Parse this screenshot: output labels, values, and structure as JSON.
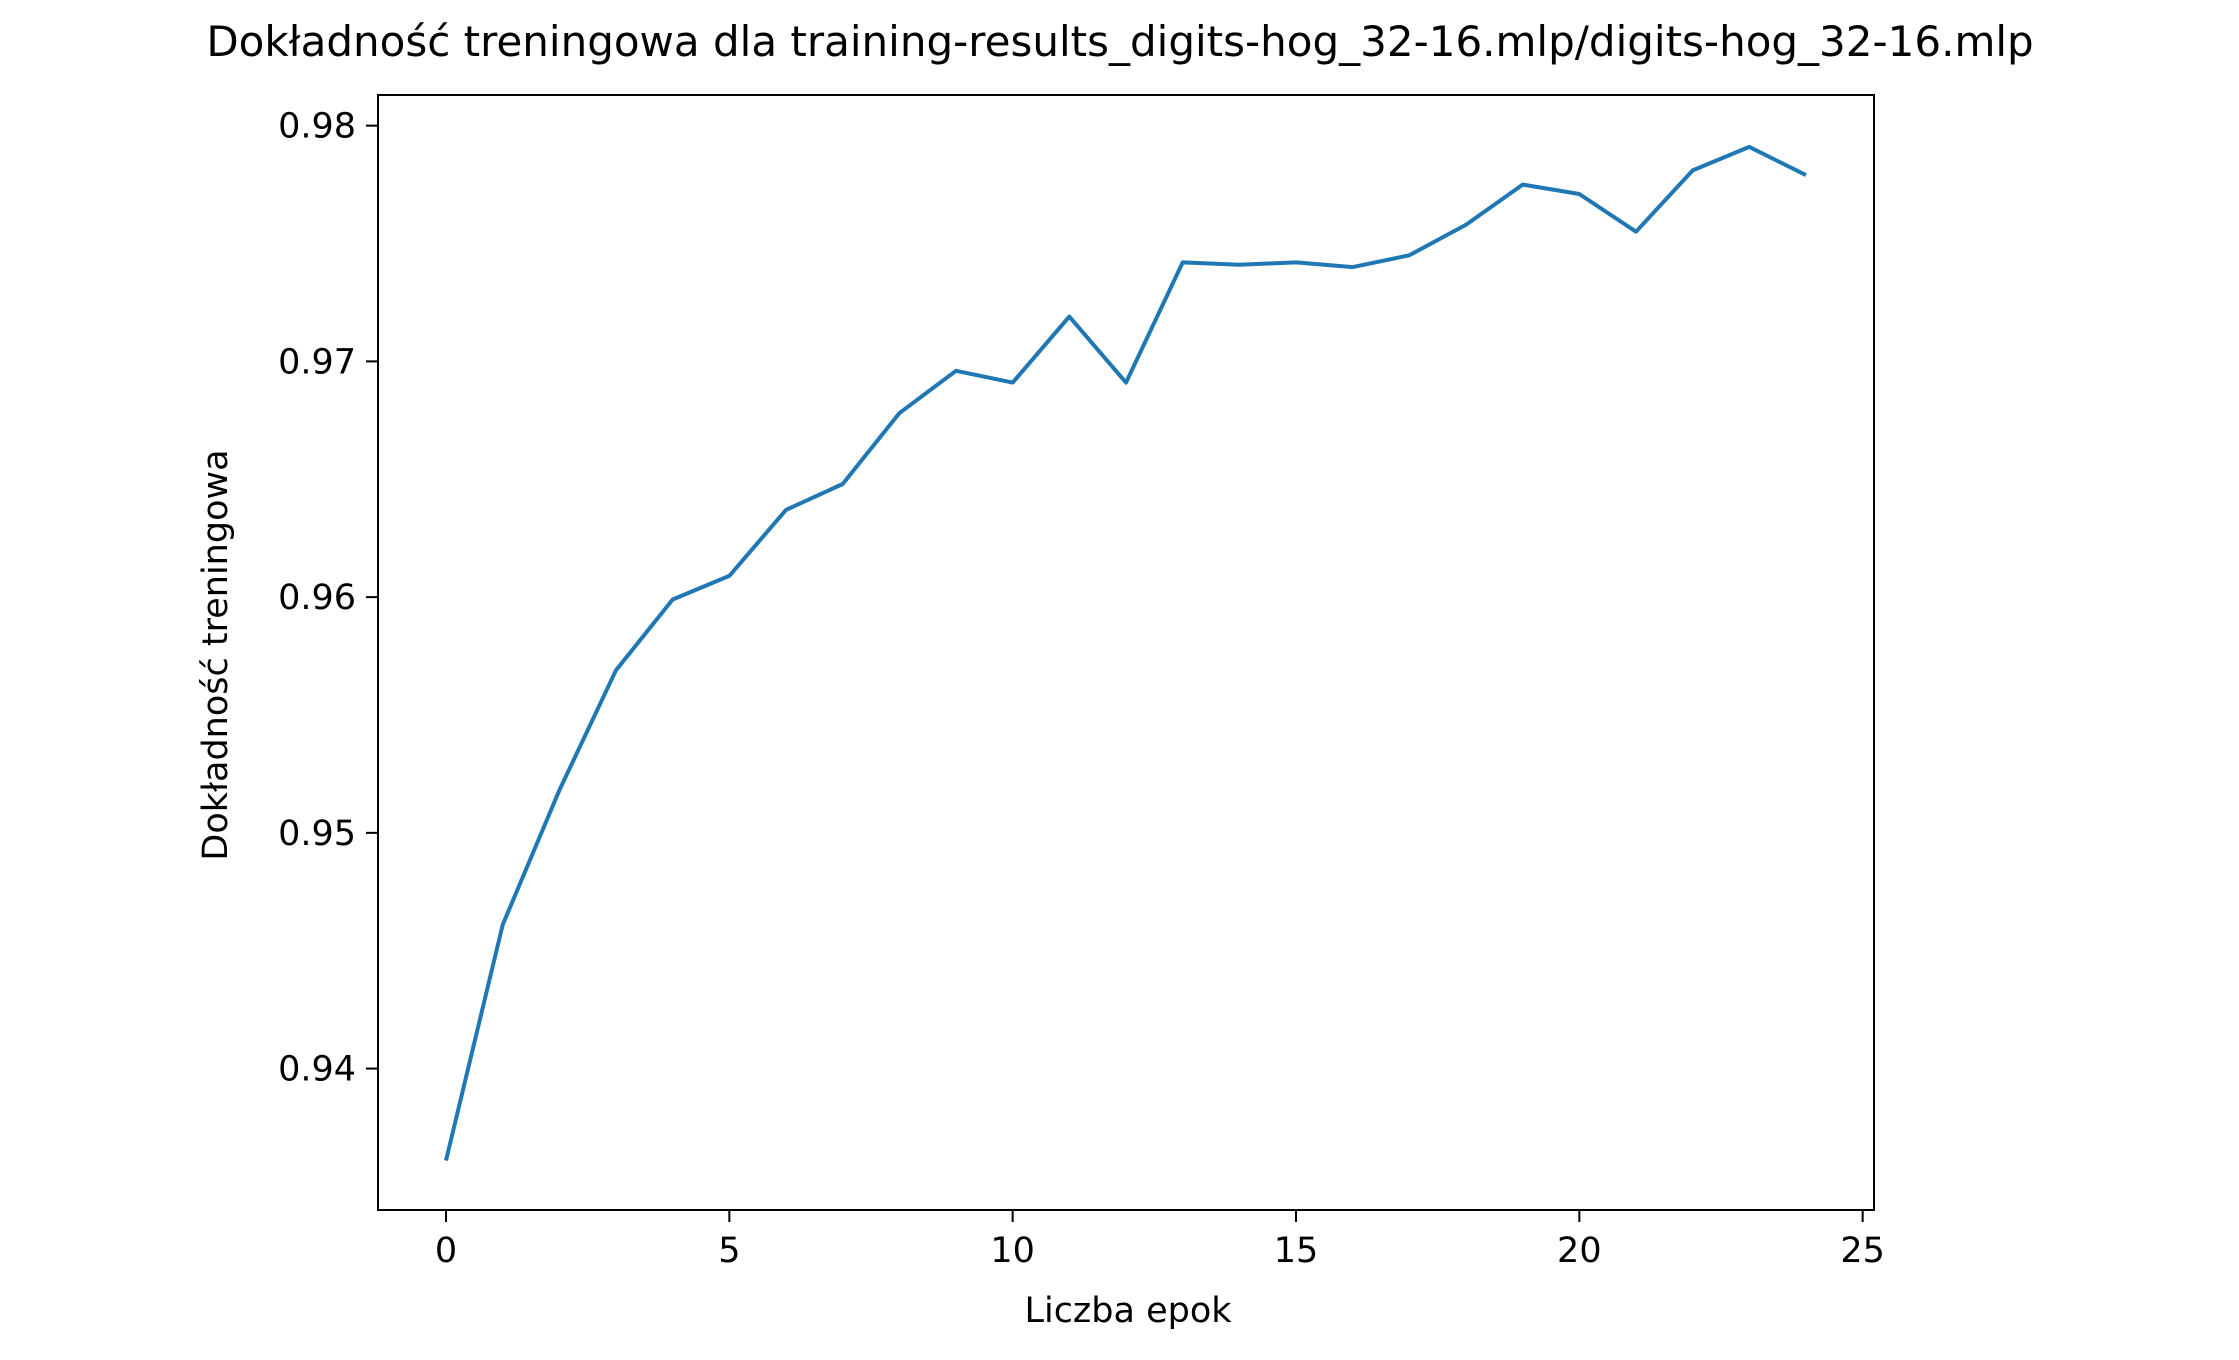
{
  "chart_data": {
    "type": "line",
    "title": "Dokładność treningowa dla training-results_digits-hog_32-16.mlp/digits-hog_32-16.mlp",
    "xlabel": "Liczba epok",
    "ylabel": "Dokładność treningowa",
    "xlim": [
      -1.2,
      25.2
    ],
    "ylim": [
      0.934,
      0.9813
    ],
    "xticks": [
      0,
      5,
      10,
      15,
      20,
      25
    ],
    "xtick_labels": [
      "0",
      "5",
      "10",
      "15",
      "20",
      "25"
    ],
    "yticks": [
      0.94,
      0.95,
      0.96,
      0.97,
      0.98
    ],
    "ytick_labels": [
      "0.94",
      "0.95",
      "0.96",
      "0.97",
      "0.98"
    ],
    "grid": false,
    "series": [
      {
        "color": "#1f77b4",
        "x": [
          0,
          1,
          2,
          3,
          4,
          5,
          6,
          7,
          8,
          9,
          10,
          11,
          12,
          13,
          14,
          15,
          16,
          17,
          18,
          19,
          20,
          21,
          22,
          23,
          24
        ],
        "y": [
          0.9361,
          0.9461,
          0.9518,
          0.9569,
          0.9599,
          0.9609,
          0.9637,
          0.9648,
          0.9678,
          0.9696,
          0.9691,
          0.9719,
          0.9691,
          0.9742,
          0.9741,
          0.9742,
          0.974,
          0.9745,
          0.9758,
          0.9775,
          0.9771,
          0.9755,
          0.9781,
          0.9791,
          0.9779
        ]
      }
    ]
  }
}
